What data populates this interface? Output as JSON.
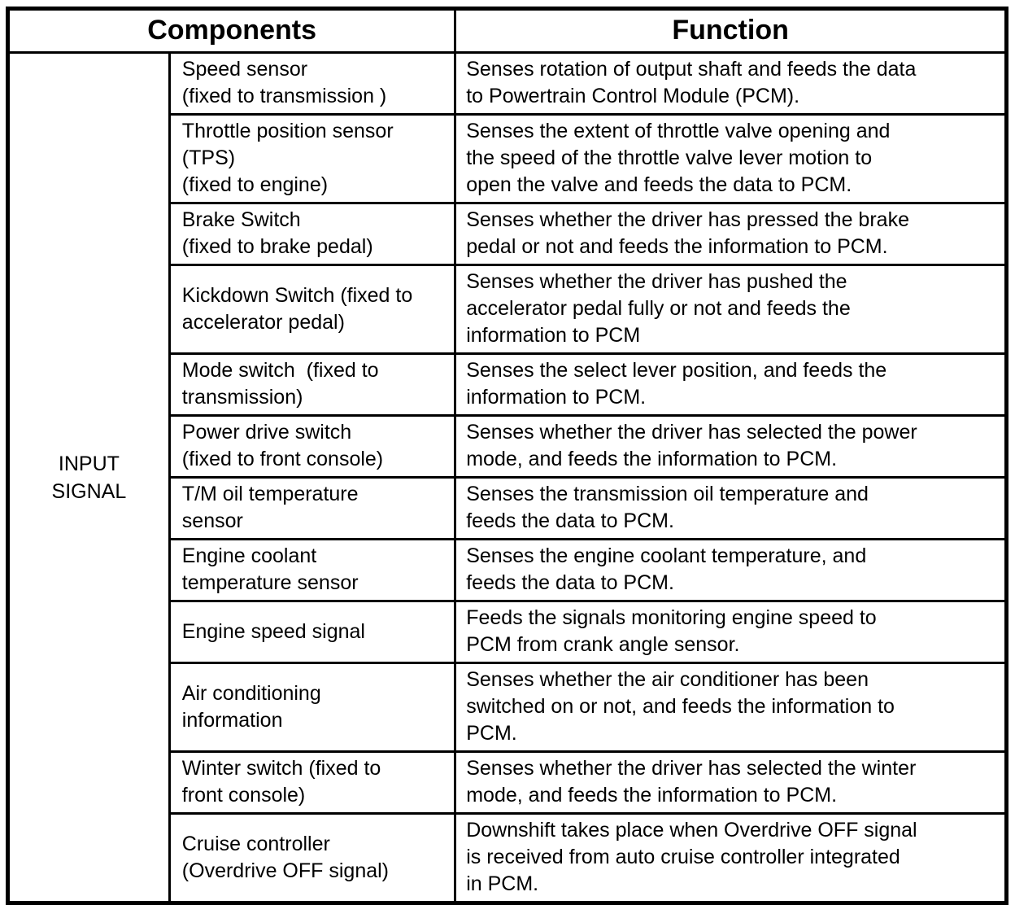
{
  "table": {
    "headers": {
      "components": "Components",
      "function": "Function"
    },
    "group_label": "INPUT\nSIGNAL",
    "rows": [
      {
        "component": "Speed sensor\n(fixed to transmission )",
        "function": "Senses rotation of output shaft and feeds the data\nto Powertrain Control Module (PCM)."
      },
      {
        "component": "Throttle position sensor\n(TPS)\n(fixed to engine)",
        "function": "Senses the extent of throttle valve opening and\nthe speed of the throttle valve lever motion to\nopen the valve and feeds the data to PCM."
      },
      {
        "component": "Brake Switch\n(fixed to brake pedal)",
        "function": "Senses whether the driver has pressed the brake\npedal or not and feeds the information to PCM."
      },
      {
        "component": "Kickdown Switch (fixed to\naccelerator pedal)",
        "function": "Senses whether the driver has pushed the\naccelerator pedal fully or not and feeds the\ninformation to PCM"
      },
      {
        "component": "Mode switch  (fixed to\ntransmission)",
        "function": "Senses the select lever position, and feeds the\ninformation to PCM."
      },
      {
        "component": "Power drive switch\n(fixed to front console)",
        "function": "Senses whether the driver has selected the power\nmode, and feeds the information to PCM."
      },
      {
        "component": "T/M oil temperature\nsensor",
        "function": "Senses the transmission oil temperature and\nfeeds the data to PCM."
      },
      {
        "component": "Engine coolant\ntemperature sensor",
        "function": "Senses the engine coolant temperature, and\nfeeds the data to PCM."
      },
      {
        "component": "Engine speed signal",
        "function": "Feeds the signals monitoring engine speed to\nPCM from crank angle sensor."
      },
      {
        "component": "Air conditioning\ninformation",
        "function": "Senses whether the air conditioner has been\nswitched on or not, and feeds the information to\nPCM."
      },
      {
        "component": "Winter switch (fixed to\nfront console)",
        "function": "Senses whether the driver has selected the winter\nmode, and feeds the information to PCM."
      },
      {
        "component": "Cruise controller\n(Overdrive OFF signal)",
        "function": "Downshift takes place when Overdrive OFF signal\nis received from auto cruise controller integrated\nin PCM."
      }
    ]
  }
}
